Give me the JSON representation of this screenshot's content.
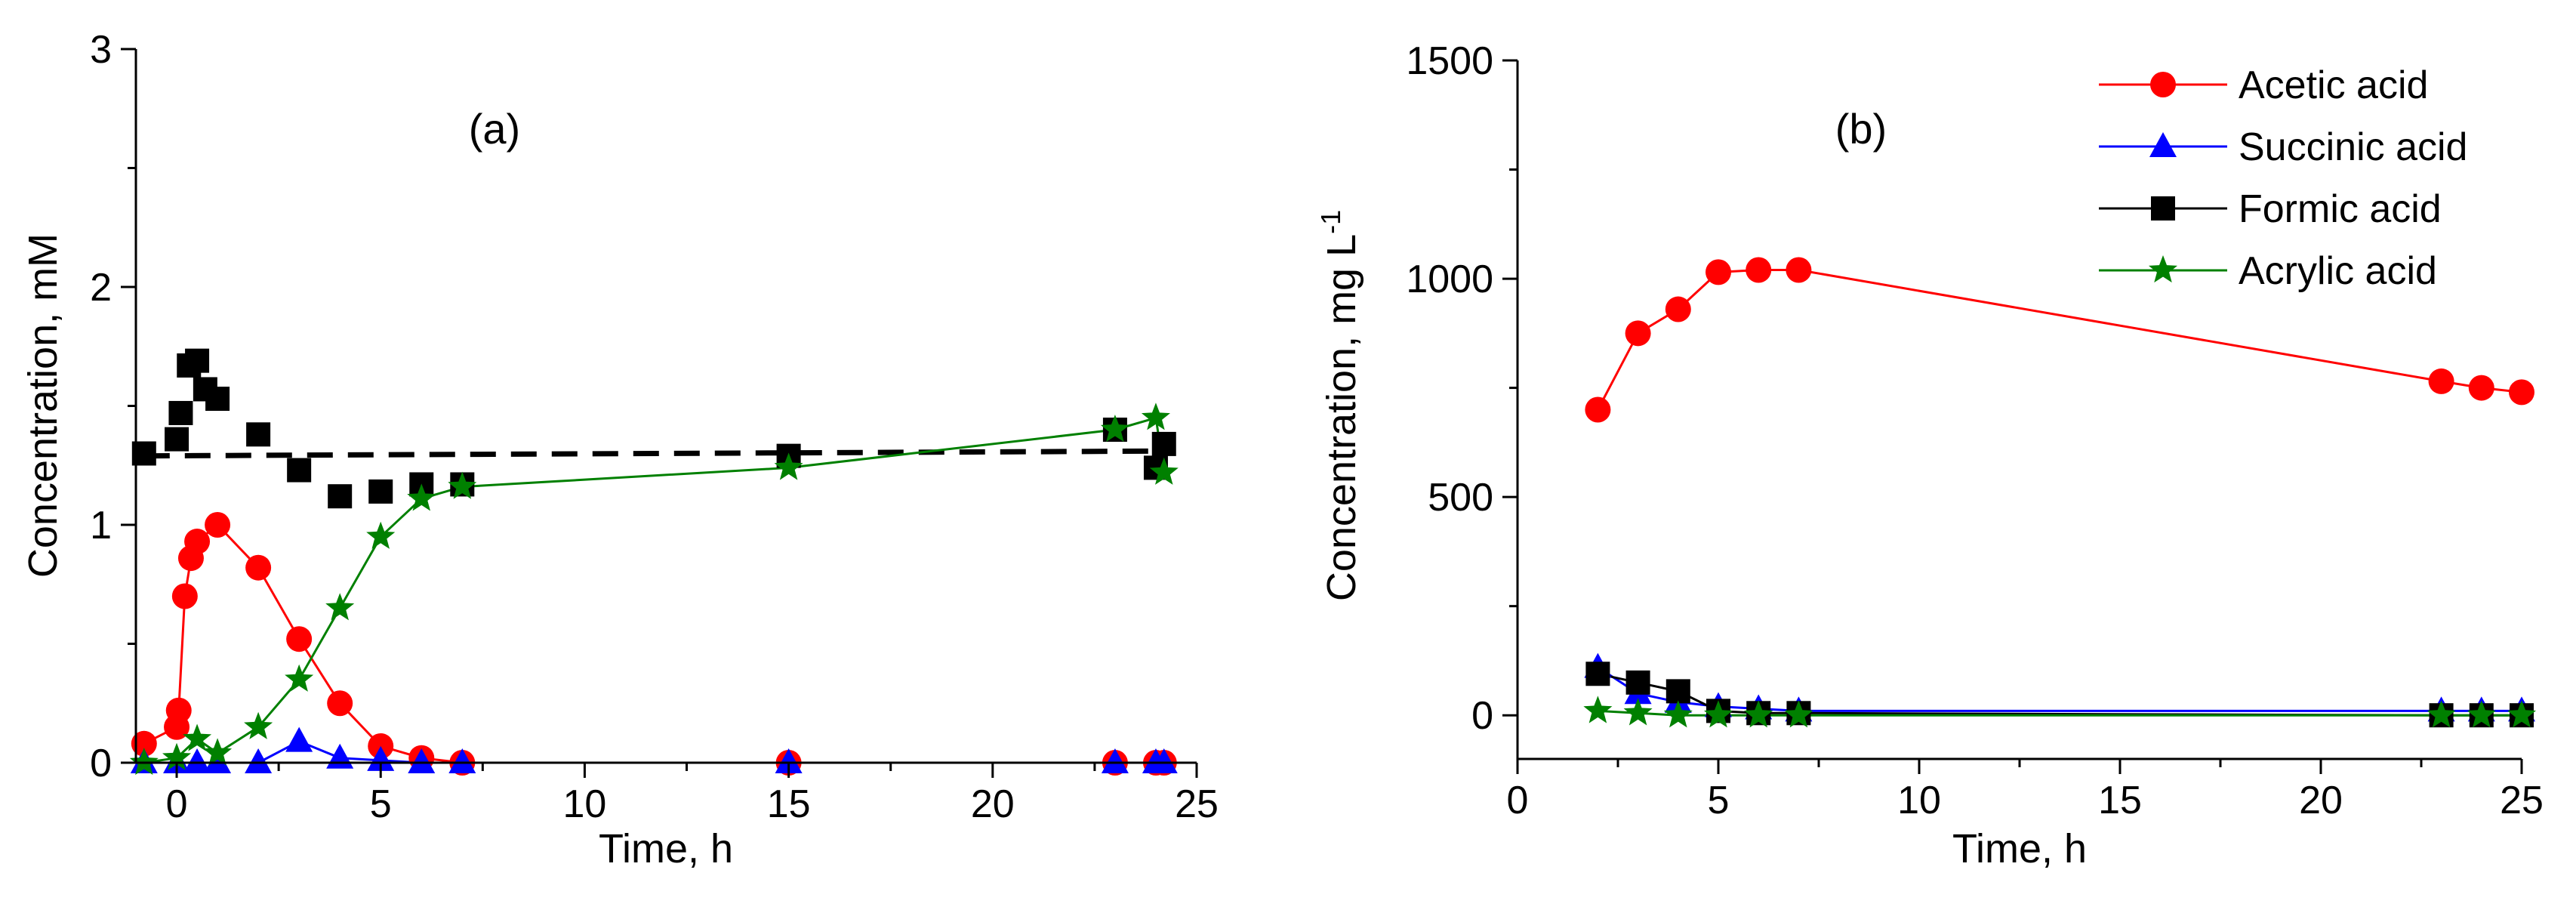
{
  "chart_data": [
    {
      "type": "line",
      "panel_label": "(a)",
      "xlabel": "Time, h",
      "ylabel": "Concentration, mM",
      "xlim": [
        -1,
        25
      ],
      "ylim": [
        0,
        3
      ],
      "xticks": [
        0,
        5,
        10,
        15,
        20,
        25
      ],
      "yticks": [
        0,
        1,
        2,
        3
      ],
      "xtick_labels": [
        "0",
        "5",
        "10",
        "15",
        "20",
        "25"
      ],
      "ytick_labels": [
        "0",
        "1",
        "2",
        "3"
      ],
      "series": [
        {
          "name": "Acetic acid",
          "color": "#ff0000",
          "marker": "circle",
          "line": true,
          "x": [
            -0.8,
            0,
            0.05,
            0.2,
            0.35,
            0.5,
            1,
            2,
            3,
            4,
            5,
            6,
            7,
            15,
            23,
            24,
            24.2
          ],
          "y": [
            0.08,
            0.15,
            0.22,
            0.7,
            0.86,
            0.93,
            1.0,
            0.82,
            0.52,
            0.25,
            0.07,
            0.02,
            0.0,
            0.0,
            0.0,
            0.0,
            0.0
          ]
        },
        {
          "name": "Succinic acid",
          "color": "#0000ff",
          "marker": "triangle",
          "line": true,
          "x": [
            -0.8,
            0,
            0.5,
            1,
            2,
            3,
            4,
            5,
            6,
            7,
            15,
            23,
            24,
            24.2
          ],
          "y": [
            0.0,
            0.0,
            0.0,
            0.0,
            0.0,
            0.09,
            0.02,
            0.01,
            0.0,
            0.0,
            0.0,
            0.0,
            0.0,
            0.0
          ]
        },
        {
          "name": "Formic acid",
          "color": "#000000",
          "marker": "square",
          "line": false,
          "x": [
            -0.8,
            0,
            0.1,
            0.3,
            0.5,
            0.7,
            1,
            2,
            3,
            4,
            5,
            6,
            7,
            15,
            23,
            24,
            24.2
          ],
          "y": [
            1.3,
            1.36,
            1.47,
            1.67,
            1.69,
            1.57,
            1.53,
            1.38,
            1.23,
            1.12,
            1.14,
            1.17,
            1.17,
            1.29,
            1.4,
            1.24,
            1.34
          ]
        },
        {
          "name": "Formic acid fit",
          "color": "#000000",
          "marker": "none",
          "line": true,
          "dashed": true,
          "x": [
            -0.8,
            24.2
          ],
          "y": [
            1.29,
            1.31
          ]
        },
        {
          "name": "Acrylic acid",
          "color": "#008000",
          "marker": "star",
          "line": true,
          "x": [
            -0.8,
            0,
            0.5,
            1,
            2,
            3,
            4,
            5,
            6,
            7,
            15,
            23,
            24,
            24.2
          ],
          "y": [
            0.0,
            0.02,
            0.1,
            0.04,
            0.15,
            0.35,
            0.65,
            0.95,
            1.11,
            1.16,
            1.24,
            1.4,
            1.45,
            1.22
          ]
        }
      ]
    },
    {
      "type": "line",
      "panel_label": "(b)",
      "xlabel": "Time, h",
      "ylabel": "Concentration, mg L",
      "ylabel_superscript": "-1",
      "xlim": [
        0,
        25
      ],
      "ylim": [
        -100,
        1500
      ],
      "xticks": [
        0,
        5,
        10,
        15,
        20,
        25
      ],
      "yticks": [
        0,
        500,
        1000,
        1500
      ],
      "xtick_labels": [
        "0",
        "5",
        "10",
        "15",
        "20",
        "25"
      ],
      "ytick_labels": [
        "0",
        "500",
        "1000",
        "1500"
      ],
      "legend_position": "top-right",
      "legend": [
        {
          "name": "Acetic acid",
          "color": "#ff0000",
          "marker": "circle"
        },
        {
          "name": "Succinic acid",
          "color": "#0000ff",
          "marker": "triangle"
        },
        {
          "name": "Formic acid",
          "color": "#000000",
          "marker": "square"
        },
        {
          "name": "Acrylic acid",
          "color": "#008000",
          "marker": "star"
        }
      ],
      "series": [
        {
          "name": "Acetic acid",
          "color": "#ff0000",
          "marker": "circle",
          "line": true,
          "x": [
            2,
            3,
            4,
            5,
            6,
            7,
            23,
            24,
            25
          ],
          "y": [
            700,
            875,
            930,
            1015,
            1020,
            1020,
            765,
            750,
            740
          ]
        },
        {
          "name": "Succinic acid",
          "color": "#0000ff",
          "marker": "triangle",
          "line": true,
          "x": [
            2,
            3,
            4,
            5,
            6,
            7,
            23,
            24,
            25
          ],
          "y": [
            110,
            50,
            30,
            20,
            15,
            10,
            10,
            10,
            10
          ]
        },
        {
          "name": "Formic acid",
          "color": "#000000",
          "marker": "square",
          "line": true,
          "x": [
            2,
            3,
            4,
            5,
            6,
            7,
            23,
            24,
            25
          ],
          "y": [
            95,
            75,
            55,
            10,
            5,
            5,
            0,
            0,
            0
          ]
        },
        {
          "name": "Acrylic acid",
          "color": "#008000",
          "marker": "star",
          "line": true,
          "x": [
            2,
            3,
            4,
            5,
            6,
            7,
            23,
            24,
            25
          ],
          "y": [
            10,
            5,
            0,
            0,
            0,
            0,
            0,
            0,
            0
          ]
        }
      ]
    }
  ]
}
